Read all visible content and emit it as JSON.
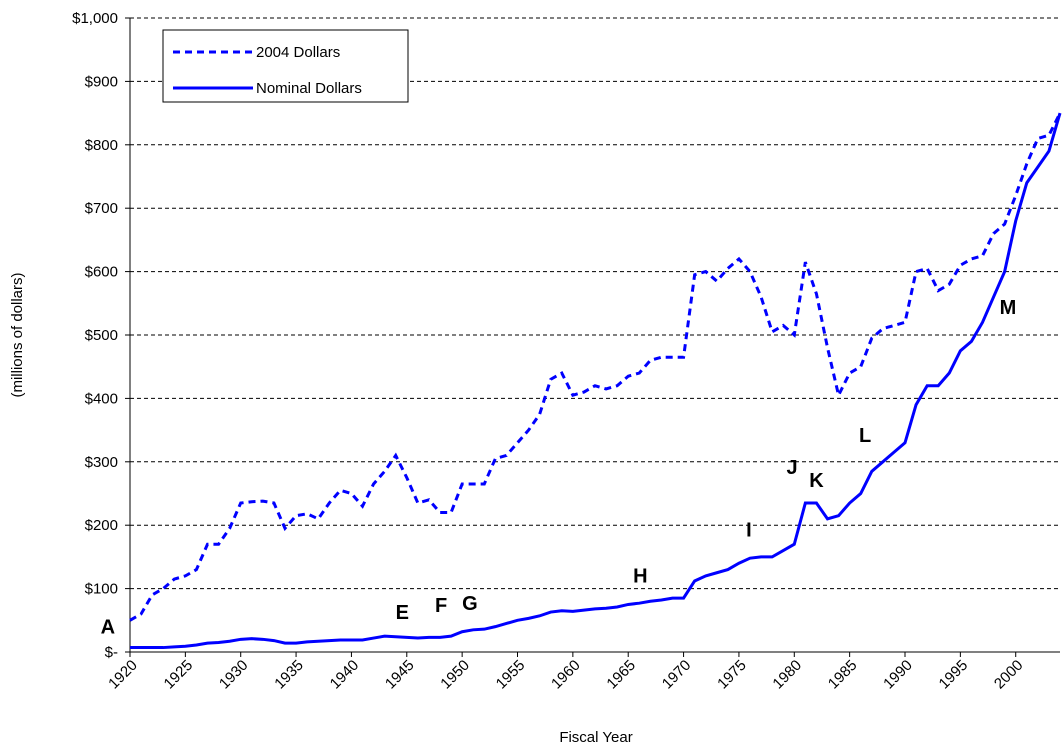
{
  "chart_data": {
    "type": "line",
    "x_label": "Fiscal Year",
    "y_label": "(millions of dollars)",
    "x": [
      1920,
      1921,
      1922,
      1923,
      1924,
      1925,
      1926,
      1927,
      1928,
      1929,
      1930,
      1931,
      1932,
      1933,
      1934,
      1935,
      1936,
      1937,
      1938,
      1939,
      1940,
      1941,
      1942,
      1943,
      1944,
      1945,
      1946,
      1947,
      1948,
      1949,
      1950,
      1951,
      1952,
      1953,
      1954,
      1955,
      1956,
      1957,
      1958,
      1959,
      1960,
      1961,
      1962,
      1963,
      1964,
      1965,
      1966,
      1967,
      1968,
      1969,
      1970,
      1971,
      1972,
      1973,
      1974,
      1975,
      1976,
      1977,
      1978,
      1979,
      1980,
      1981,
      1982,
      1983,
      1984,
      1985,
      1986,
      1987,
      1988,
      1989,
      1990,
      1991,
      1992,
      1993,
      1994,
      1995,
      1996,
      1997,
      1998,
      1999,
      2000,
      2001,
      2002,
      2003,
      2004
    ],
    "series": [
      {
        "name": "2004 Dollars",
        "color": "#0000ff",
        "dashed": true,
        "values": [
          50,
          60,
          90,
          100,
          115,
          120,
          130,
          170,
          170,
          195,
          235,
          237,
          238,
          235,
          195,
          215,
          218,
          210,
          235,
          255,
          250,
          230,
          265,
          285,
          310,
          275,
          235,
          240,
          220,
          220,
          265,
          265,
          265,
          305,
          310,
          330,
          350,
          375,
          430,
          440,
          405,
          410,
          420,
          415,
          420,
          435,
          440,
          460,
          465,
          465,
          465,
          595,
          600,
          585,
          605,
          620,
          600,
          560,
          505,
          515,
          500,
          615,
          565,
          480,
          405,
          440,
          450,
          495,
          510,
          515,
          520,
          600,
          605,
          570,
          580,
          610,
          620,
          625,
          660,
          675,
          720,
          770,
          810,
          815,
          850
        ]
      },
      {
        "name": "Nominal Dollars",
        "color": "#0000ff",
        "dashed": false,
        "values": [
          7,
          7,
          7,
          7,
          8,
          9,
          11,
          14,
          15,
          17,
          20,
          21,
          20,
          18,
          14,
          14,
          16,
          17,
          18,
          19,
          19,
          19,
          22,
          25,
          24,
          23,
          22,
          23,
          23,
          25,
          32,
          35,
          36,
          40,
          45,
          50,
          53,
          57,
          63,
          65,
          64,
          66,
          68,
          69,
          71,
          75,
          77,
          80,
          82,
          85,
          85,
          112,
          120,
          125,
          130,
          140,
          148,
          150,
          150,
          160,
          170,
          235,
          235,
          210,
          215,
          235,
          250,
          285,
          300,
          315,
          330,
          390,
          420,
          420,
          440,
          475,
          490,
          520,
          560,
          600,
          680,
          740,
          765,
          790,
          850
        ]
      }
    ],
    "annotations": [
      {
        "text": "A",
        "x": 1918,
        "y": 40
      },
      {
        "text": "E",
        "x": 1944.6,
        "y": 63
      },
      {
        "text": "F",
        "x": 1948.1,
        "y": 74
      },
      {
        "text": "G",
        "x": 1950.7,
        "y": 77
      },
      {
        "text": "H",
        "x": 1966.1,
        "y": 121
      },
      {
        "text": "I",
        "x": 1975.9,
        "y": 193
      },
      {
        "text": "J",
        "x": 1979.8,
        "y": 292
      },
      {
        "text": "K",
        "x": 1982,
        "y": 271
      },
      {
        "text": "L",
        "x": 1986.4,
        "y": 342
      },
      {
        "text": "M",
        "x": 1999.3,
        "y": 544
      }
    ],
    "xlim": [
      1920,
      2004
    ],
    "xticks": [
      1920,
      1925,
      1930,
      1935,
      1940,
      1945,
      1950,
      1955,
      1960,
      1965,
      1970,
      1975,
      1980,
      1985,
      1990,
      1995,
      2000
    ],
    "ylim": [
      0,
      1000
    ],
    "yticks": [
      {
        "value": 0,
        "label": "$-"
      },
      {
        "value": 100,
        "label": "$100"
      },
      {
        "value": 200,
        "label": "$200"
      },
      {
        "value": 300,
        "label": "$300"
      },
      {
        "value": 400,
        "label": "$400"
      },
      {
        "value": 500,
        "label": "$500"
      },
      {
        "value": 600,
        "label": "$600"
      },
      {
        "value": 700,
        "label": "$700"
      },
      {
        "value": 800,
        "label": "$800"
      },
      {
        "value": 900,
        "label": "$900"
      },
      {
        "value": 1000,
        "label": "$1,000"
      }
    ],
    "grid": true,
    "legend": "upper left"
  }
}
